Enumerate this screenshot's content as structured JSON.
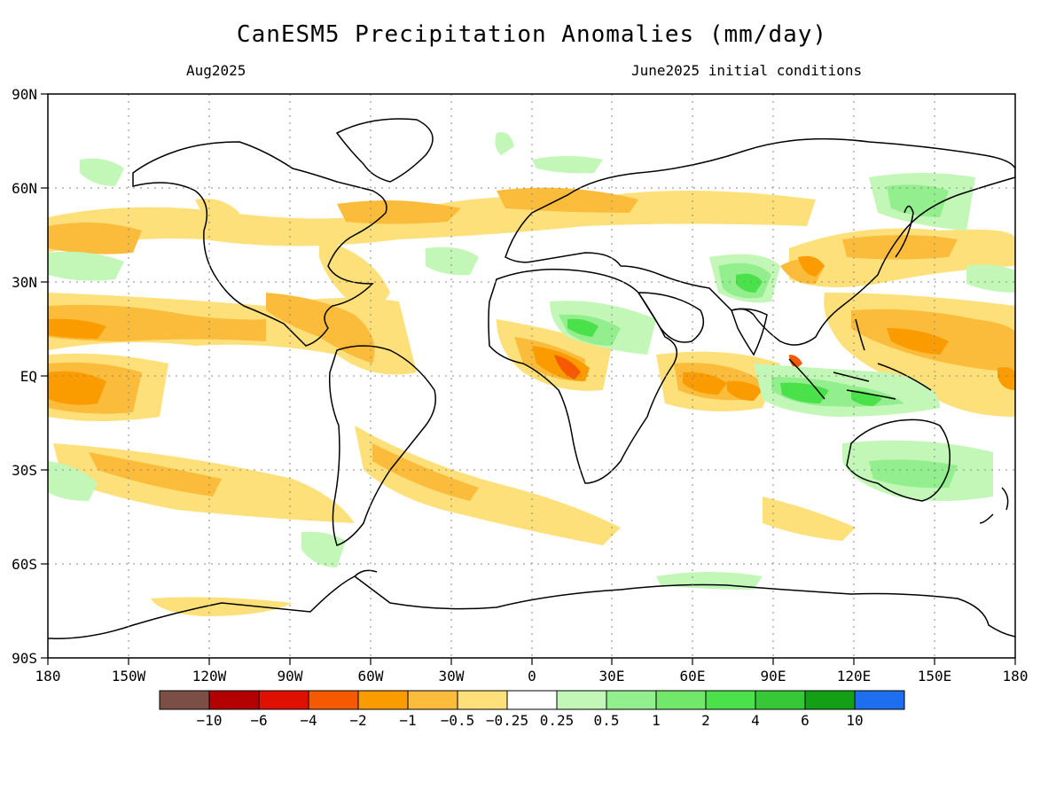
{
  "title": "CanESM5 Precipitation Anomalies (mm/day)",
  "subtitle_left": "Aug2025",
  "subtitle_right": "June2025 initial conditions",
  "lat_labels": [
    "90N",
    "60N",
    "30N",
    "EQ",
    "30S",
    "60S",
    "90S"
  ],
  "lon_labels": [
    "180",
    "150W",
    "120W",
    "90W",
    "60W",
    "30W",
    "0",
    "30E",
    "60E",
    "90E",
    "120E",
    "150E",
    "180"
  ],
  "colorbar": {
    "colors": [
      "#7b4f45",
      "#b30000",
      "#e01000",
      "#f55a00",
      "#fa9b00",
      "#fbbb3b",
      "#fde07a",
      "#ffffff",
      "#c2f7b8",
      "#93ee8d",
      "#72e86b",
      "#4ae14a",
      "#36c836",
      "#14a014",
      "#1e6ef0"
    ],
    "labels": [
      "-10",
      "-6",
      "-4",
      "-2",
      "-1",
      "-0.5",
      "-0.25",
      "0.25",
      "0.5",
      "1",
      "2",
      "4",
      "6",
      "10"
    ]
  }
}
